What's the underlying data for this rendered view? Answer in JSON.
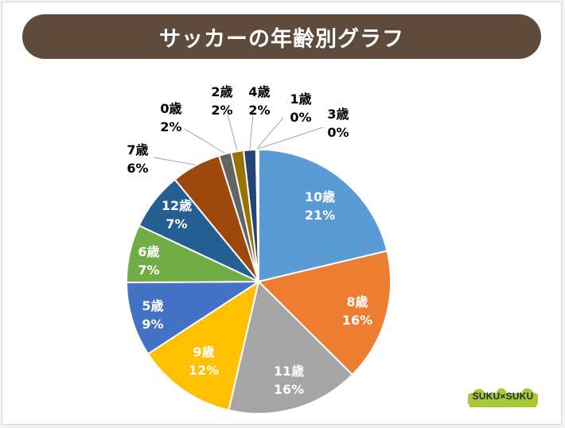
{
  "header": {
    "title": "サッカーの年齢別グラフ"
  },
  "chart_data": {
    "type": "pie",
    "title": "サッカーの年齢別グラフ",
    "slices": [
      {
        "label": "10歳",
        "pct": "21%",
        "value": 21,
        "color": "#5b9bd5"
      },
      {
        "label": "8歳",
        "pct": "16%",
        "value": 16,
        "color": "#ed7d31"
      },
      {
        "label": "11歳",
        "pct": "16%",
        "value": 16,
        "color": "#a5a5a5"
      },
      {
        "label": "9歳",
        "pct": "12%",
        "value": 12,
        "color": "#ffc000"
      },
      {
        "label": "5歳",
        "pct": "9%",
        "value": 9,
        "color": "#4472c4"
      },
      {
        "label": "6歳",
        "pct": "7%",
        "value": 7,
        "color": "#70ad47"
      },
      {
        "label": "12歳",
        "pct": "7%",
        "value": 7,
        "color": "#255e91"
      },
      {
        "label": "7歳",
        "pct": "6%",
        "value": 6,
        "color": "#9e480e"
      },
      {
        "label": "0歳",
        "pct": "2%",
        "value": 1.5,
        "color": "#636363"
      },
      {
        "label": "2歳",
        "pct": "2%",
        "value": 1.5,
        "color": "#997300"
      },
      {
        "label": "4歳",
        "pct": "2%",
        "value": 1.5,
        "color": "#264478"
      },
      {
        "label": "1歳",
        "pct": "0%",
        "value": 0.15,
        "color": "#43682b"
      },
      {
        "label": "3歳",
        "pct": "0%",
        "value": 0.15,
        "color": "#698ed0"
      }
    ]
  },
  "branding": {
    "logo": "SUKU×SUKU",
    "logo_color": "#a8c83a"
  }
}
